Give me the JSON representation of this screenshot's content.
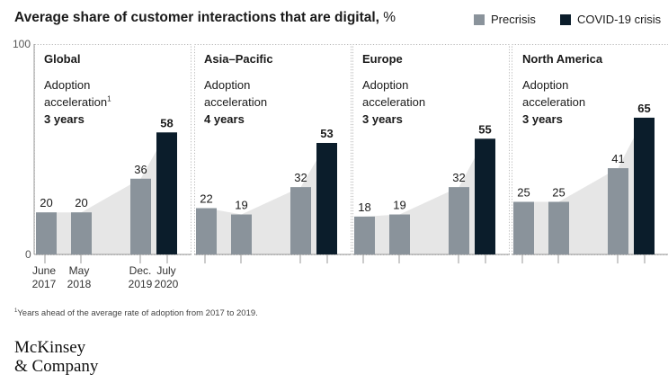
{
  "header": {
    "title": "Average share of customer interactions that are digital,",
    "unit": " %"
  },
  "legend": [
    {
      "label": "Precrisis",
      "color": "#8a939b"
    },
    {
      "label": "COVID-19 crisis",
      "color": "#0b1d2b"
    }
  ],
  "colors": {
    "precrisis": "#8a939b",
    "crisis": "#0b1d2b",
    "area": "#e6e6e6",
    "frame": "#b8b8b8"
  },
  "chart_data": {
    "type": "bar",
    "title": "Average share of customer interactions that are digital, %",
    "ylim": [
      0,
      100
    ],
    "yticks": [
      {
        "value": 100,
        "label": "100"
      },
      {
        "value": 0,
        "label": "0"
      }
    ],
    "categories": [
      {
        "label_1": "June",
        "label_2": "2017"
      },
      {
        "label_1": "May",
        "label_2": "2018"
      },
      {
        "label_1": "Dec.",
        "label_2": "2019"
      },
      {
        "label_1": "July",
        "label_2": "2020"
      }
    ],
    "panels": [
      {
        "region": "Global",
        "note_1": "Adoption",
        "note_2": "acceleration",
        "note_sup": "1",
        "note_3": "3 years",
        "values": [
          20,
          20,
          36,
          58
        ],
        "series": [
          "Precrisis",
          "Precrisis",
          "Precrisis",
          "COVID-19 crisis"
        ]
      },
      {
        "region": "Asia–Pacific",
        "note_1": "Adoption",
        "note_2": "acceleration",
        "note_sup": "",
        "note_3": "4 years",
        "values": [
          22,
          19,
          32,
          53
        ],
        "series": [
          "Precrisis",
          "Precrisis",
          "Precrisis",
          "COVID-19 crisis"
        ]
      },
      {
        "region": "Europe",
        "note_1": "Adoption",
        "note_2": "acceleration",
        "note_sup": "",
        "note_3": "3 years",
        "values": [
          18,
          19,
          32,
          55
        ],
        "series": [
          "Precrisis",
          "Precrisis",
          "Precrisis",
          "COVID-19 crisis"
        ]
      },
      {
        "region": "North America",
        "note_1": "Adoption",
        "note_2": "acceleration",
        "note_sup": "",
        "note_3": "3 years",
        "values": [
          25,
          25,
          41,
          65
        ],
        "series": [
          "Precrisis",
          "Precrisis",
          "Precrisis",
          "COVID-19 crisis"
        ]
      }
    ]
  },
  "footnote": {
    "sup": "1",
    "text": "Years ahead of the average rate of adoption from 2017 to 2019."
  },
  "logo": {
    "line1": "McKinsey",
    "line2": "& Company"
  }
}
